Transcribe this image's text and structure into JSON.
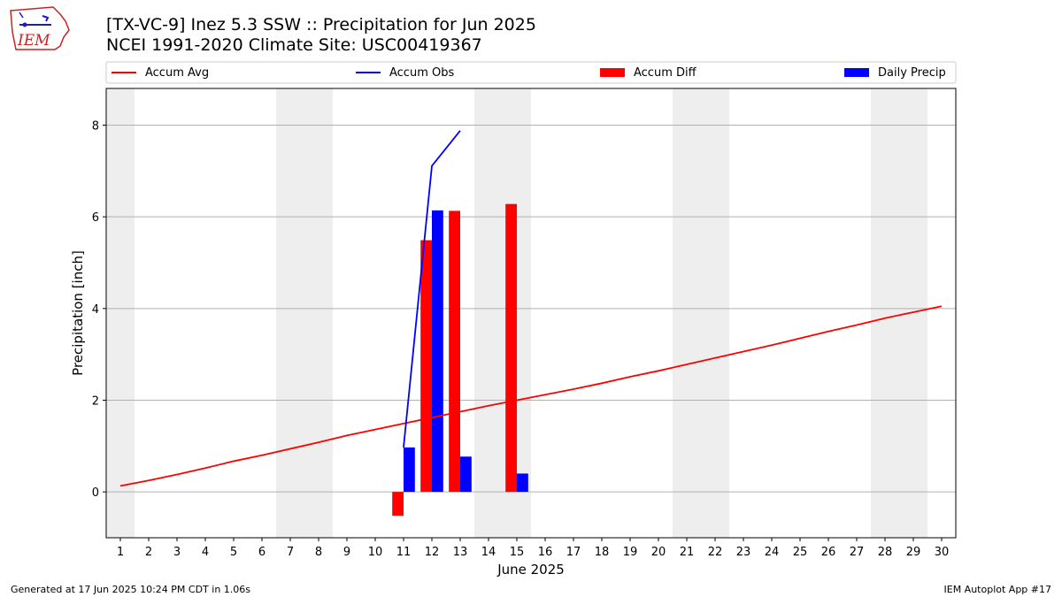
{
  "header": {
    "title_line1": "[TX-VC-9] Inez 5.3 SSW :: Precipitation for Jun 2025",
    "title_line2": "NCEI 1991-2020 Climate Site: USC00419367",
    "logo_text": "IEM"
  },
  "footer": {
    "generated": "Generated at 17 Jun 2025 10:24 PM CDT in 1.06s",
    "app": "IEM Autoplot App #17"
  },
  "colors": {
    "accum_avg": "#ff0000",
    "accum_obs": "#0000ff",
    "accum_diff": "#ff0000",
    "daily_precip": "#0000ff",
    "weekend_band": "#eeeeee",
    "grid": "#b0b0b0",
    "logo_red": "#cc2222",
    "logo_blue": "#1a1acc"
  },
  "chart_data": {
    "type": "bar",
    "xlabel": "June 2025",
    "ylabel": "Precipitation [inch]",
    "xlim": [
      0.5,
      30.5
    ],
    "ylim": [
      -1.0,
      8.8
    ],
    "yticks": [
      0,
      2,
      4,
      6,
      8
    ],
    "xticks": [
      1,
      2,
      3,
      4,
      5,
      6,
      7,
      8,
      9,
      10,
      11,
      12,
      13,
      14,
      15,
      16,
      17,
      18,
      19,
      20,
      21,
      22,
      23,
      24,
      25,
      26,
      27,
      28,
      29,
      30
    ],
    "grid": "horizontal",
    "legend_placement": "top, above plot",
    "weekend_bands": [
      [
        0.5,
        1.5
      ],
      [
        6.5,
        8.5
      ],
      [
        13.5,
        15.5
      ],
      [
        20.5,
        22.5
      ],
      [
        27.5,
        29.5
      ]
    ],
    "legend": [
      {
        "label": "Accum Avg",
        "kind": "line",
        "color": "#ff0000"
      },
      {
        "label": "Accum Obs",
        "kind": "line",
        "color": "#0000ff"
      },
      {
        "label": "Accum Diff",
        "kind": "bar",
        "color": "#ff0000"
      },
      {
        "label": "Daily Precip",
        "kind": "bar",
        "color": "#0000ff"
      }
    ],
    "series": [
      {
        "name": "Accum Avg",
        "kind": "line",
        "color": "#ff0000",
        "x": [
          1,
          2,
          3,
          4,
          5,
          6,
          7,
          8,
          9,
          10,
          11,
          12,
          13,
          14,
          15,
          16,
          17,
          18,
          19,
          20,
          21,
          22,
          23,
          24,
          25,
          26,
          27,
          28,
          29,
          30
        ],
        "values": [
          0.13,
          0.25,
          0.38,
          0.52,
          0.67,
          0.8,
          0.94,
          1.08,
          1.23,
          1.36,
          1.49,
          1.62,
          1.75,
          1.88,
          2.0,
          2.12,
          2.24,
          2.37,
          2.51,
          2.64,
          2.78,
          2.92,
          3.06,
          3.2,
          3.35,
          3.5,
          3.64,
          3.79,
          3.92,
          4.05
        ]
      },
      {
        "name": "Accum Obs",
        "kind": "line",
        "color": "#0000ff",
        "x": [
          11,
          12,
          13
        ],
        "values": [
          0.97,
          7.11,
          7.88
        ]
      },
      {
        "name": "Accum Diff",
        "kind": "bar",
        "color": "#ff0000",
        "x": [
          11,
          12,
          13,
          15
        ],
        "values": [
          -0.52,
          5.49,
          6.13,
          6.28
        ]
      },
      {
        "name": "Daily Precip",
        "kind": "bar",
        "color": "#0000ff",
        "x": [
          11,
          12,
          13,
          15
        ],
        "values": [
          0.97,
          6.14,
          0.77,
          0.4
        ]
      }
    ]
  }
}
